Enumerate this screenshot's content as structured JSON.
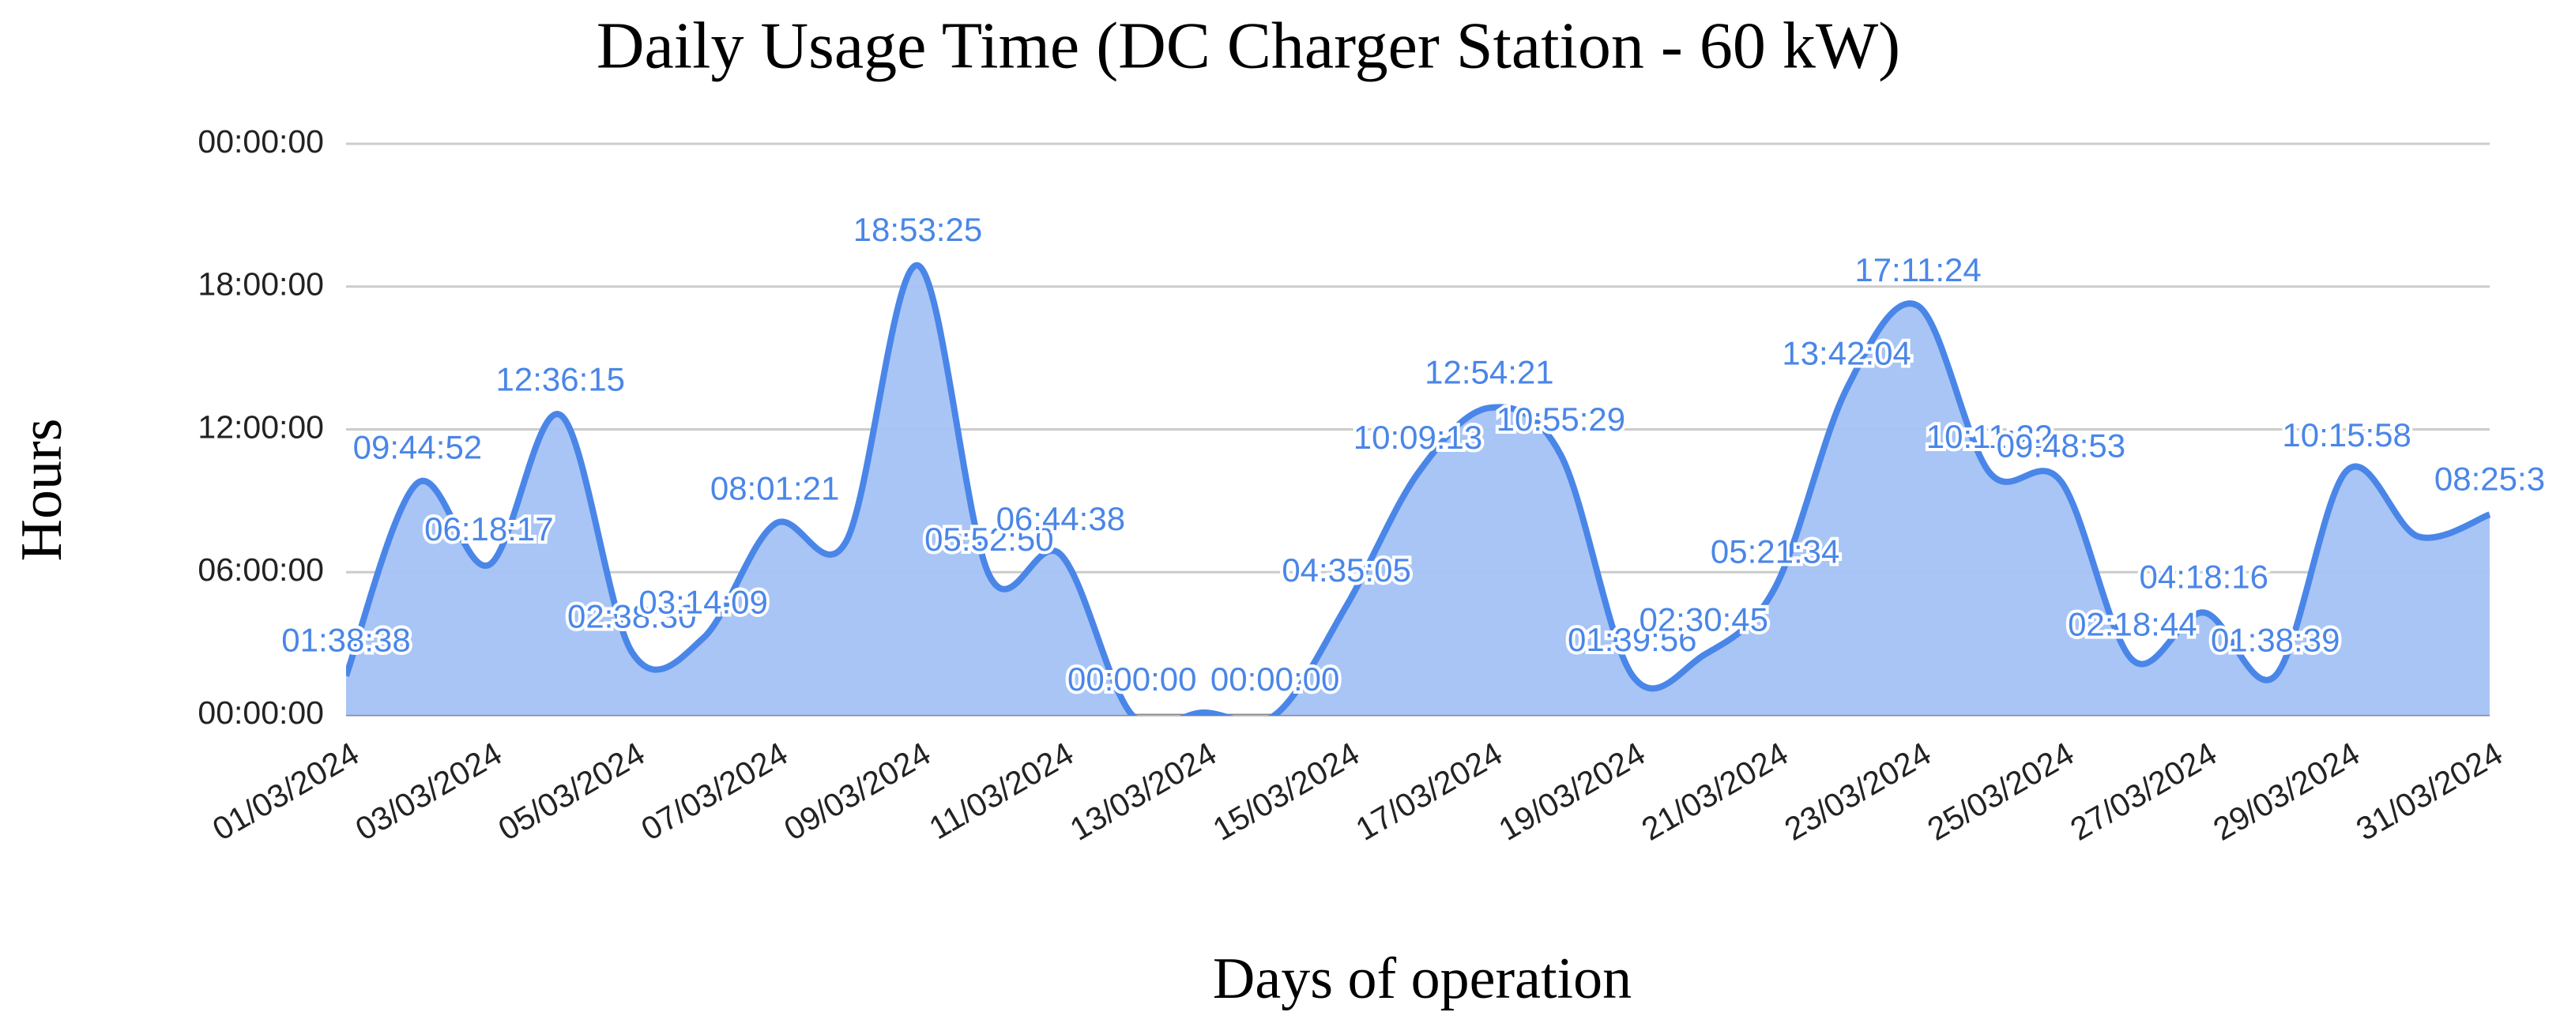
{
  "chart_data": {
    "type": "area",
    "title": "Daily Usage Time (DC Charger Station - 60 kW)",
    "x_label": "Days of operation",
    "y_label": "Hours",
    "categories": [
      "01/03/2024",
      null,
      "03/03/2024",
      null,
      "05/03/2024",
      null,
      "07/03/2024",
      null,
      "09/03/2024",
      null,
      "11/03/2024",
      null,
      "13/03/2024",
      null,
      "15/03/2024",
      null,
      "17/03/2024",
      null,
      "19/03/2024",
      null,
      "21/03/2024",
      null,
      "23/03/2024",
      null,
      "25/03/2024",
      null,
      "27/03/2024",
      null,
      "29/03/2024",
      null,
      "31/03/2024"
    ],
    "values": [
      1.644,
      9.748,
      6.305,
      12.604,
      2.642,
      3.236,
      8.023,
      7.3,
      18.89,
      5.881,
      6.744,
      0,
      0.1,
      0,
      4.585,
      10.154,
      12.906,
      10.925,
      1.666,
      2.513,
      5.359,
      13.701,
      17.19,
      10.189,
      9.815,
      2.312,
      4.304,
      1.644,
      10.266,
      7.5,
      8.42
    ],
    "value_labels": [
      "01:38:38",
      "09:44:52",
      "06:18:17",
      "12:36:15",
      "02:38:30",
      "03:14:09",
      "08:01:21",
      null,
      "18:53:25",
      "05:52:50",
      "06:44:38",
      "00:00:00",
      null,
      "00:00:00",
      "04:35:05",
      "10:09:13",
      "12:54:21",
      "10:55:29",
      "01:39:56",
      "02:30:45",
      "05:21:34",
      "13:42:04",
      "17:11:24",
      "10:11:22",
      "09:48:53",
      "02:18:44",
      "04:18:16",
      "01:38:39",
      "10:15:58",
      null,
      "08:25:3"
    ],
    "color": "#4a86e8",
    "fill_color": "#a4c2f4",
    "ylim": [
      0,
      24
    ],
    "yticks": [
      {
        "value": 0,
        "label": "00:00:00"
      },
      {
        "value": 6,
        "label": "06:00:00"
      },
      {
        "value": 12,
        "label": "12:00:00"
      },
      {
        "value": 18,
        "label": "18:00:00"
      },
      {
        "value": 24,
        "label": "00:00:00"
      }
    ],
    "grid": true
  }
}
